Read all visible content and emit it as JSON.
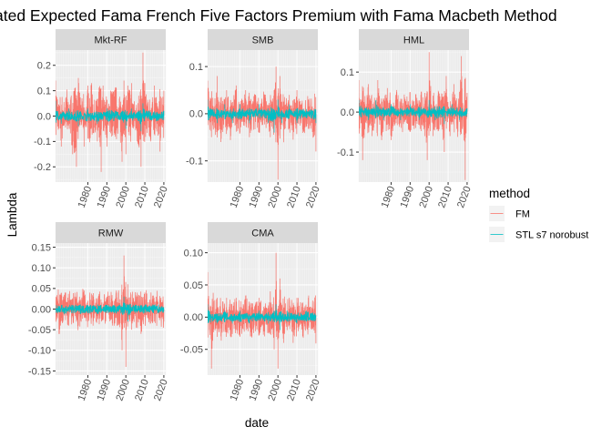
{
  "chart_data": {
    "type": "line",
    "title": "ated Expected Fama French Five Factors Premium with Fama Macbeth Method",
    "xlabel": "date",
    "ylabel": "Lambda",
    "legend": {
      "title": "method",
      "placement": "right",
      "entries": [
        {
          "name": "FM",
          "color": "#F8766D"
        },
        {
          "name": "STL s7 norobust",
          "color": "#00BFC4"
        }
      ]
    },
    "x_range": [
      1963,
      2021
    ],
    "x_ticks": [
      1980,
      1990,
      2000,
      2010,
      2020
    ],
    "x_tick_labels": [
      "1980",
      "1990",
      "2000",
      "2010",
      "2020"
    ],
    "panels": [
      {
        "name": "Mkt-RF",
        "ylim": [
          -0.26,
          0.26
        ],
        "y_ticks": [
          -0.2,
          -0.1,
          0.0,
          0.1,
          0.2
        ],
        "y_tick_labels": [
          "-0.2",
          "-0.1",
          "0.0",
          "0.1",
          "0.2"
        ],
        "series": [
          {
            "name": "FM",
            "color": "#F8766D",
            "x": [
              1963,
              1966,
              1969,
              1972,
              1974,
              1975,
              1978,
              1980,
              1982,
              1985,
              1987,
              1988,
              1990,
              1992,
              1995,
              1998,
              1999,
              2000,
              2001,
              2003,
              2006,
              2008,
              2009,
              2010,
              2013,
              2015,
              2018,
              2020
            ],
            "y": [
              0.14,
              -0.12,
              0.1,
              -0.15,
              -0.2,
              0.15,
              -0.12,
              0.12,
              0.13,
              -0.1,
              -0.22,
              0.12,
              -0.12,
              0.1,
              0.11,
              -0.18,
              0.14,
              -0.15,
              0.12,
              0.13,
              -0.1,
              -0.2,
              0.25,
              0.13,
              -0.1,
              0.12,
              -0.14,
              0.1
            ]
          },
          {
            "name": "STL s7 norobust",
            "color": "#00BFC4",
            "x": [
              1963,
              1966,
              1970,
              1975,
              1980,
              1985,
              1990,
              1995,
              2000,
              2003,
              2008,
              2009,
              2012,
              2016,
              2020
            ],
            "y": [
              0.06,
              -0.03,
              0.03,
              -0.04,
              0.03,
              -0.03,
              0.03,
              0.02,
              -0.05,
              0.03,
              -0.06,
              0.05,
              0.02,
              -0.02,
              0.02
            ]
          }
        ]
      },
      {
        "name": "SMB",
        "ylim": [
          -0.145,
          0.135
        ],
        "y_ticks": [
          -0.1,
          0.0,
          0.1
        ],
        "y_tick_labels": [
          "-0.1",
          "0.0",
          "0.1"
        ],
        "series": [
          {
            "name": "FM",
            "color": "#F8766D",
            "x": [
              1963,
              1965,
              1968,
              1970,
              1973,
              1975,
              1978,
              1980,
              1983,
              1985,
              1988,
              1990,
              1993,
              1996,
              1998,
              1999,
              2000,
              2001,
              2003,
              2006,
              2008,
              2010,
              2013,
              2016,
              2020
            ],
            "y": [
              0.07,
              -0.05,
              0.08,
              -0.06,
              0.05,
              -0.05,
              0.06,
              -0.04,
              0.05,
              -0.05,
              0.04,
              -0.04,
              0.04,
              -0.05,
              0.05,
              0.1,
              -0.14,
              0.08,
              -0.06,
              0.04,
              -0.05,
              0.05,
              -0.04,
              0.03,
              -0.08
            ]
          },
          {
            "name": "STL s7 norobust",
            "color": "#00BFC4",
            "x": [
              1963,
              1968,
              1972,
              1976,
              1980,
              1985,
              1990,
              1995,
              1998,
              2000,
              2002,
              2006,
              2010,
              2015,
              2020
            ],
            "y": [
              0.03,
              -0.02,
              0.02,
              -0.02,
              0.02,
              -0.02,
              0.02,
              -0.02,
              -0.04,
              0.03,
              -0.02,
              0.02,
              -0.02,
              0.01,
              -0.02
            ]
          }
        ]
      },
      {
        "name": "HML",
        "ylim": [
          -0.175,
          0.155
        ],
        "y_ticks": [
          -0.1,
          0.0,
          0.1
        ],
        "y_tick_labels": [
          "-0.1",
          "0.0",
          "0.1"
        ],
        "series": [
          {
            "name": "FM",
            "color": "#F8766D",
            "x": [
              1963,
              1965,
              1968,
              1970,
              1973,
              1975,
              1978,
              1980,
              1983,
              1986,
              1990,
              1993,
              1996,
              1999,
              2000,
              2002,
              2005,
              2008,
              2009,
              2011,
              2013,
              2015,
              2017,
              2019,
              2020
            ],
            "y": [
              0.08,
              -0.12,
              0.07,
              -0.06,
              0.08,
              -0.07,
              0.06,
              -0.07,
              0.05,
              -0.05,
              0.05,
              -0.04,
              0.05,
              -0.12,
              0.15,
              -0.06,
              0.05,
              -0.1,
              0.09,
              -0.05,
              0.07,
              -0.05,
              0.14,
              -0.17,
              0.04
            ]
          },
          {
            "name": "STL s7 norobust",
            "color": "#00BFC4",
            "x": [
              1963,
              1968,
              1972,
              1976,
              1980,
              1985,
              1990,
              1995,
              2000,
              2003,
              2008,
              2012,
              2016,
              2020
            ],
            "y": [
              0.03,
              -0.02,
              0.03,
              -0.02,
              0.02,
              -0.02,
              0.02,
              -0.02,
              0.03,
              -0.02,
              -0.03,
              0.02,
              -0.02,
              0.01
            ]
          }
        ]
      },
      {
        "name": "RMW",
        "ylim": [
          -0.16,
          0.16
        ],
        "y_ticks": [
          -0.15,
          -0.1,
          -0.05,
          0.0,
          0.05,
          0.1,
          0.15
        ],
        "y_tick_labels": [
          "-0.15",
          "-0.10",
          "-0.05",
          "0.00",
          "0.05",
          "0.10",
          "0.15"
        ],
        "series": [
          {
            "name": "FM",
            "color": "#F8766D",
            "x": [
              1963,
              1965,
              1968,
              1970,
              1973,
              1975,
              1978,
              1980,
              1983,
              1986,
              1990,
              1993,
              1996,
              1998,
              1999,
              2000,
              2001,
              2003,
              2006,
              2008,
              2010,
              2013,
              2016,
              2020
            ],
            "y": [
              0.03,
              -0.06,
              0.04,
              -0.04,
              0.03,
              -0.04,
              0.04,
              -0.03,
              0.03,
              -0.03,
              0.03,
              -0.04,
              0.04,
              -0.1,
              0.13,
              -0.14,
              0.06,
              -0.05,
              0.04,
              -0.06,
              0.04,
              -0.03,
              0.03,
              -0.03
            ]
          },
          {
            "name": "STL s7 norobust",
            "color": "#00BFC4",
            "x": [
              1963,
              1968,
              1972,
              1976,
              1980,
              1985,
              1990,
              1995,
              1999,
              2001,
              2005,
              2010,
              2015,
              2020
            ],
            "y": [
              0.01,
              -0.01,
              0.01,
              -0.01,
              0.01,
              -0.01,
              0.01,
              -0.01,
              0.03,
              -0.03,
              0.01,
              -0.01,
              0.01,
              0.0
            ]
          }
        ]
      },
      {
        "name": "CMA",
        "ylim": [
          -0.09,
          0.115
        ],
        "y_ticks": [
          -0.05,
          0.0,
          0.05,
          0.1
        ],
        "y_tick_labels": [
          "-0.05",
          "0.00",
          "0.05",
          "0.10"
        ],
        "series": [
          {
            "name": "FM",
            "color": "#F8766D",
            "x": [
              1963,
              1965,
              1968,
              1970,
              1973,
              1975,
              1978,
              1980,
              1983,
              1986,
              1990,
              1993,
              1996,
              1998,
              1999,
              2000,
              2001,
              2003,
              2006,
              2008,
              2010,
              2013,
              2016,
              2020
            ],
            "y": [
              0.07,
              -0.08,
              0.03,
              -0.03,
              0.03,
              -0.03,
              0.03,
              -0.03,
              0.03,
              -0.03,
              0.03,
              -0.03,
              0.04,
              -0.05,
              0.1,
              -0.08,
              0.06,
              -0.04,
              0.03,
              -0.04,
              0.03,
              -0.03,
              0.03,
              -0.04
            ]
          },
          {
            "name": "STL s7 norobust",
            "color": "#00BFC4",
            "x": [
              1963,
              1968,
              1972,
              1976,
              1980,
              1985,
              1990,
              1995,
              1999,
              2001,
              2005,
              2010,
              2015,
              2020
            ],
            "y": [
              0.02,
              -0.01,
              0.01,
              -0.01,
              0.01,
              -0.01,
              0.01,
              -0.01,
              0.02,
              -0.02,
              0.01,
              -0.01,
              0.01,
              0.0
            ]
          }
        ]
      }
    ]
  }
}
